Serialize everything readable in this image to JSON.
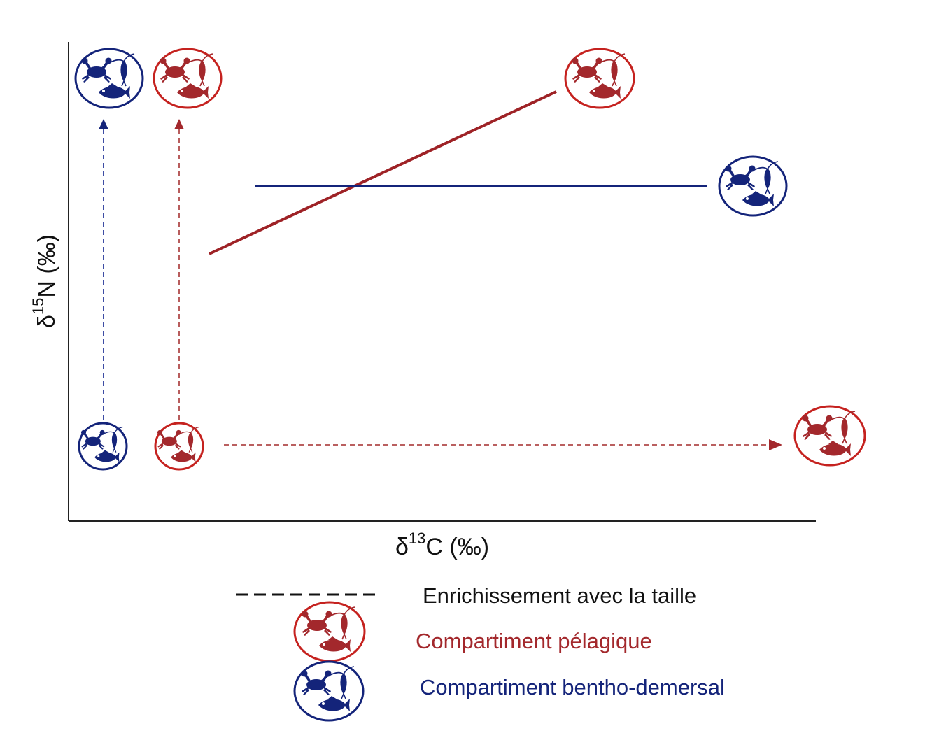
{
  "colors": {
    "pelagic": "#a3282c",
    "benthic": "#14247a",
    "pelagic_ring": "#c5221f",
    "axis": "#222222"
  },
  "axes": {
    "x_label_main": "δ",
    "x_label_sup": "13",
    "x_label_rest": "C (‰)",
    "y_label_main": "δ",
    "y_label_sup": "15",
    "y_label_rest": "N (‰)"
  },
  "legend": {
    "dashed_label": "Enrichissement avec la taille",
    "pelagic_label": "Compartiment pélagique",
    "benthic_label": "Compartiment bentho-demersal"
  },
  "icons": {
    "community_icon": "crab-copepod-fish-community-icon",
    "crab": "crab-icon",
    "copepod": "copepod-icon",
    "fish": "fish-icon"
  }
}
